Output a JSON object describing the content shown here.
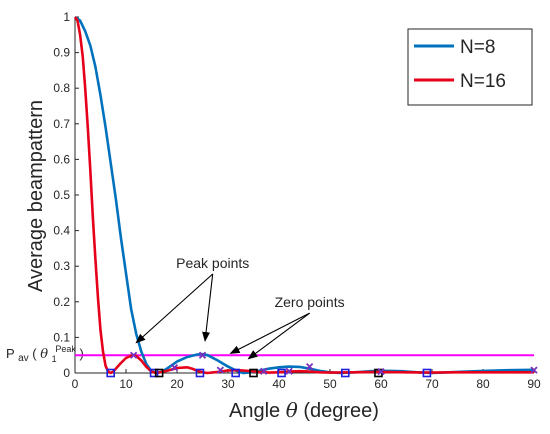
{
  "chart_data": {
    "type": "line",
    "xlabel_prefix": "Angle",
    "xlabel_symbol": "θ",
    "xlabel_suffix": "(degree)",
    "ylabel": "Average beampattern",
    "xlim": [
      0,
      90
    ],
    "ylim": [
      0,
      1
    ],
    "x_ticks": [
      0,
      10,
      20,
      30,
      40,
      50,
      60,
      70,
      80,
      90
    ],
    "y_ticks": [
      0,
      0.1,
      0.2,
      0.3,
      0.4,
      0.5,
      0.6,
      0.7,
      0.8,
      0.9,
      1
    ],
    "grid": false,
    "legend_position": "top-right",
    "colors": {
      "N=8": "#0072bd",
      "N=16": "#e6001a",
      "threshold": "#ff00ff",
      "zero_marker": "#1f1fe0",
      "peak_marker": "#7b2fbe"
    },
    "series": [
      {
        "name": "N=8",
        "x": [
          0,
          1,
          2,
          3,
          4,
          5,
          6,
          7,
          8,
          9,
          10,
          11,
          12,
          13,
          14,
          15,
          16,
          17,
          18,
          19,
          20,
          22,
          24,
          25,
          26,
          28,
          30,
          32,
          33,
          34,
          36,
          38,
          40,
          42,
          44,
          46,
          48,
          50,
          52,
          54,
          56,
          58,
          60,
          62,
          64,
          66,
          68,
          70,
          75,
          80,
          85,
          90
        ],
        "values": [
          1.0,
          0.99,
          0.96,
          0.92,
          0.86,
          0.78,
          0.69,
          0.59,
          0.49,
          0.38,
          0.28,
          0.18,
          0.11,
          0.06,
          0.025,
          0.005,
          0.0,
          0.003,
          0.012,
          0.022,
          0.032,
          0.045,
          0.052,
          0.053,
          0.05,
          0.035,
          0.018,
          0.004,
          0.0,
          0.001,
          0.006,
          0.012,
          0.016,
          0.018,
          0.017,
          0.012,
          0.006,
          0.002,
          0.0,
          0.001,
          0.003,
          0.005,
          0.006,
          0.006,
          0.005,
          0.003,
          0.001,
          0.0,
          0.003,
          0.006,
          0.008,
          0.009
        ]
      },
      {
        "name": "N=16",
        "x": [
          0,
          0.5,
          1,
          1.5,
          2,
          2.5,
          3,
          3.5,
          4,
          4.5,
          5,
          5.5,
          6,
          6.5,
          7,
          7.5,
          8,
          9,
          10,
          11,
          11.5,
          12,
          13,
          14,
          15,
          16,
          18,
          20,
          22,
          23,
          24,
          25,
          26,
          28,
          30,
          32,
          34,
          36,
          38,
          40,
          42,
          44,
          46,
          48,
          50,
          55,
          60,
          65,
          70,
          75,
          80,
          85,
          90
        ],
        "values": [
          1.0,
          0.99,
          0.95,
          0.89,
          0.8,
          0.69,
          0.57,
          0.44,
          0.32,
          0.21,
          0.12,
          0.06,
          0.02,
          0.004,
          0.0,
          0.004,
          0.012,
          0.028,
          0.042,
          0.049,
          0.05,
          0.048,
          0.035,
          0.017,
          0.004,
          0.0,
          0.006,
          0.014,
          0.016,
          0.012,
          0.006,
          0.002,
          0.0,
          0.003,
          0.007,
          0.008,
          0.006,
          0.003,
          0.001,
          0.002,
          0.004,
          0.005,
          0.004,
          0.002,
          0.001,
          0.002,
          0.003,
          0.002,
          0.001,
          0.002,
          0.002,
          0.002,
          0.002
        ]
      }
    ],
    "threshold_line": {
      "y": 0.05
    },
    "zero_markers_square": [
      {
        "x": 7,
        "y": 0
      },
      {
        "x": 15.5,
        "y": 0
      },
      {
        "x": 24.5,
        "y": 0
      },
      {
        "x": 31.5,
        "y": 0
      },
      {
        "x": 40.5,
        "y": 0
      },
      {
        "x": 53,
        "y": 0
      },
      {
        "x": 69,
        "y": 0
      }
    ],
    "peak_markers_cross": [
      {
        "x": 11.5,
        "y": 0.05
      },
      {
        "x": 19.5,
        "y": 0.015
      },
      {
        "x": 25,
        "y": 0.05
      },
      {
        "x": 28.5,
        "y": 0.008
      },
      {
        "x": 37,
        "y": 0.005
      },
      {
        "x": 42,
        "y": 0.005
      },
      {
        "x": 46,
        "y": 0.018
      },
      {
        "x": 60,
        "y": 0.004
      },
      {
        "x": 90,
        "y": 0.008
      }
    ],
    "zero_markers_black": [
      {
        "x": 16.5,
        "y": 0
      },
      {
        "x": 35,
        "y": 0
      },
      {
        "x": 59.5,
        "y": 0
      }
    ],
    "annotations": [
      {
        "text": "Peak points",
        "text_x": 27,
        "text_y": 0.295,
        "arrows_to": [
          [
            12,
            0.085
          ],
          [
            25.5,
            0.09
          ]
        ]
      },
      {
        "text": "Zero points",
        "text_x": 46,
        "text_y": 0.185,
        "arrows_to": [
          [
            30.5,
            0.055
          ],
          [
            34,
            0.04
          ]
        ]
      }
    ],
    "threshold_label": {
      "base": "P",
      "base_sub": "av",
      "open": "(",
      "symbol": "θ",
      "symbol_sub": "1",
      "symbol_sup": "Peak",
      "close": ")"
    }
  }
}
